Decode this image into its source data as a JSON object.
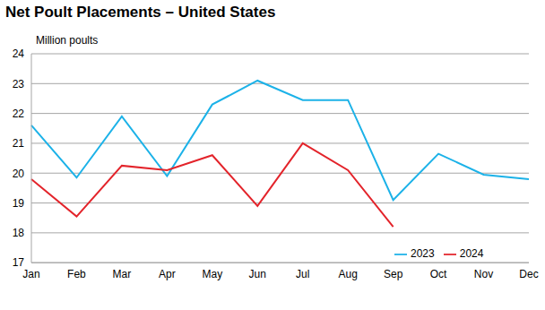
{
  "chart_data": {
    "type": "line",
    "title": "Net Poult Placements – United States",
    "subtitle": "Million poults",
    "categories": [
      "Jan",
      "Feb",
      "Mar",
      "Apr",
      "May",
      "Jun",
      "Jul",
      "Aug",
      "Sep",
      "Oct",
      "Nov",
      "Dec"
    ],
    "series": [
      {
        "name": "2023",
        "color": "#1cb2e8",
        "values": [
          21.6,
          19.85,
          21.9,
          19.9,
          22.3,
          23.1,
          22.45,
          22.45,
          19.1,
          20.65,
          19.95,
          19.8
        ]
      },
      {
        "name": "2024",
        "color": "#e3242b",
        "values": [
          19.8,
          18.55,
          20.25,
          20.1,
          20.6,
          18.9,
          21.0,
          20.1,
          18.2,
          null,
          null,
          null
        ]
      }
    ],
    "ylim": [
      17,
      24
    ],
    "yticks": [
      17,
      18,
      19,
      20,
      21,
      22,
      23,
      24
    ],
    "grid": true,
    "legend": "lower right"
  }
}
